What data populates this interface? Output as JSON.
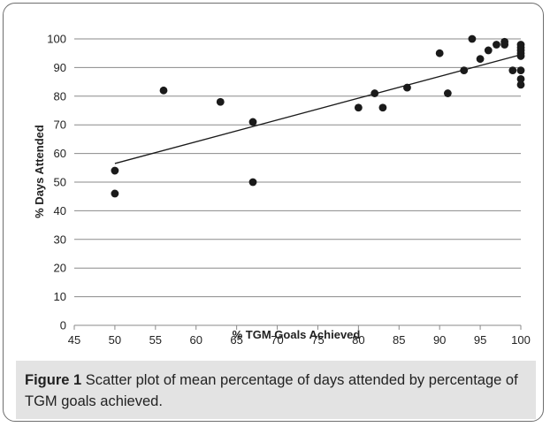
{
  "chart_data": {
    "type": "scatter",
    "title": "",
    "xlabel": "% TGM Goals Achieved",
    "ylabel": "% Days Attended",
    "xlim": [
      45,
      100
    ],
    "ylim": [
      0,
      100
    ],
    "x_ticks": [
      45,
      50,
      55,
      60,
      65,
      70,
      75,
      80,
      85,
      90,
      95,
      100
    ],
    "y_ticks": [
      0,
      10,
      20,
      30,
      40,
      50,
      60,
      70,
      80,
      90,
      100
    ],
    "grid": "horizontal",
    "legend": "none",
    "marker_color": "#1a1a1a",
    "points": [
      {
        "x": 50,
        "y": 54
      },
      {
        "x": 50,
        "y": 46
      },
      {
        "x": 56,
        "y": 82
      },
      {
        "x": 63,
        "y": 78
      },
      {
        "x": 67,
        "y": 71
      },
      {
        "x": 67,
        "y": 50
      },
      {
        "x": 80,
        "y": 76
      },
      {
        "x": 82,
        "y": 81
      },
      {
        "x": 83,
        "y": 76
      },
      {
        "x": 86,
        "y": 83
      },
      {
        "x": 90,
        "y": 95
      },
      {
        "x": 91,
        "y": 81
      },
      {
        "x": 93,
        "y": 89
      },
      {
        "x": 94,
        "y": 100
      },
      {
        "x": 95,
        "y": 93
      },
      {
        "x": 96,
        "y": 96
      },
      {
        "x": 97,
        "y": 98
      },
      {
        "x": 98,
        "y": 99
      },
      {
        "x": 98,
        "y": 98
      },
      {
        "x": 99,
        "y": 89
      },
      {
        "x": 100,
        "y": 98
      },
      {
        "x": 100,
        "y": 97
      },
      {
        "x": 100,
        "y": 96
      },
      {
        "x": 100,
        "y": 95
      },
      {
        "x": 100,
        "y": 94
      },
      {
        "x": 100,
        "y": 89
      },
      {
        "x": 100,
        "y": 86
      },
      {
        "x": 100,
        "y": 84
      }
    ],
    "trendline": {
      "x": [
        50,
        100
      ],
      "y": [
        56.5,
        94.5
      ]
    }
  },
  "caption": {
    "label": "Figure 1",
    "text": " Scatter plot of mean percentage of days attended by percentage of TGM goals achieved."
  }
}
